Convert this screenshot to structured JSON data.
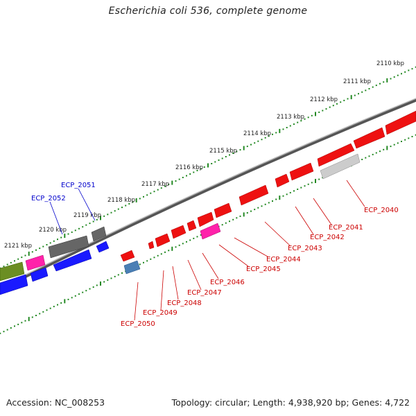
{
  "title": "Escherichia coli 536, complete genome",
  "accession": "Accession: NC_008253",
  "summary": "Topology: circular; Length: 4,938,920 bp; Genes: 4,722",
  "scale_labels": [
    "2110 kbp",
    "2111 kbp",
    "2112 kbp",
    "2113 kbp",
    "2114 kbp",
    "2115 kbp",
    "2116 kbp",
    "2117 kbp",
    "2118 kbp",
    "2119 kbp",
    "2120 kbp",
    "2121 kbp"
  ],
  "genes": [
    {
      "id": "ECP_2040",
      "color": "#cc0000"
    },
    {
      "id": "ECP_2041",
      "color": "#cc0000"
    },
    {
      "id": "ECP_2042",
      "color": "#cc0000"
    },
    {
      "id": "ECP_2043",
      "color": "#cc0000"
    },
    {
      "id": "ECP_2044",
      "color": "#cc0000"
    },
    {
      "id": "ECP_2045",
      "color": "#cc0000"
    },
    {
      "id": "ECP_2046",
      "color": "#cc0000"
    },
    {
      "id": "ECP_2047",
      "color": "#cc0000"
    },
    {
      "id": "ECP_2048",
      "color": "#cc0000"
    },
    {
      "id": "ECP_2049",
      "color": "#cc0000"
    },
    {
      "id": "ECP_2050",
      "color": "#cc0000"
    },
    {
      "id": "ECP_2051",
      "color": "#0000cc"
    },
    {
      "id": "ECP_2052",
      "color": "#0000cc"
    }
  ],
  "colors": {
    "backbone": "#777777",
    "scale_dots": "#228822",
    "red_gene": "#ff1111",
    "blue_gene": "#1a1aff",
    "gray_gene": "#666666",
    "light_gray_gene": "#cccccc",
    "magenta_gene": "#ff22aa",
    "olive_gene": "#6b8e23",
    "steel_gene": "#4a7fb5"
  }
}
